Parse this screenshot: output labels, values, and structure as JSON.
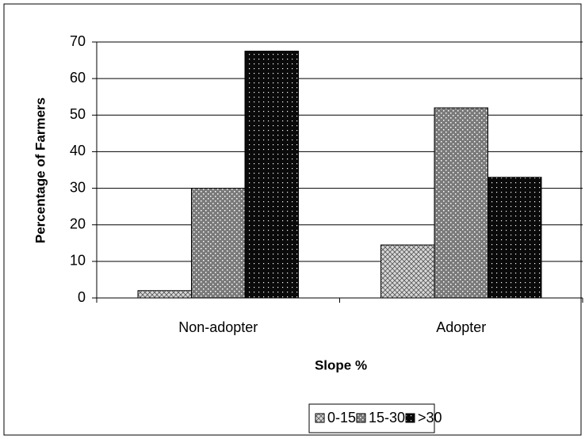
{
  "chart_data": {
    "type": "bar",
    "x_label": "Slope %",
    "y_label": "Percentage of Farmers",
    "categories": [
      "Non-adopter",
      "Adopter"
    ],
    "series": [
      {
        "name": "0-15",
        "color": "#d8d8d8",
        "values": [
          2,
          14.5
        ]
      },
      {
        "name": "15-30",
        "color": "#7a7a7a",
        "values": [
          30,
          52
        ]
      },
      {
        "name": ">30",
        "color": "#0a0a0a",
        "values": [
          67.5,
          33
        ]
      }
    ],
    "ylim": [
      0,
      70
    ],
    "yticks": [
      0,
      10,
      20,
      30,
      40,
      50,
      60,
      70
    ],
    "grid": true
  }
}
